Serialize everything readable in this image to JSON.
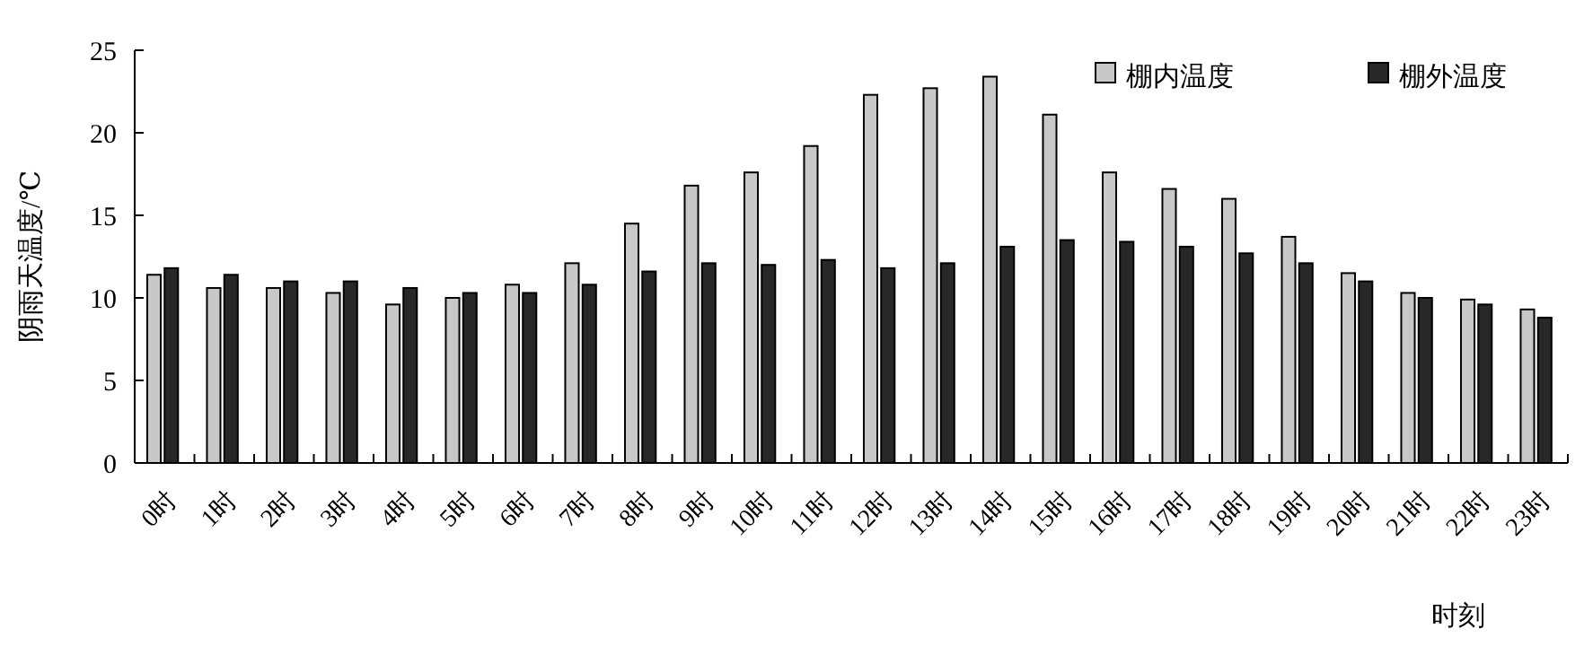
{
  "chart_data": {
    "type": "bar",
    "xlabel": "时刻",
    "ylabel": "阴雨天温度/℃",
    "categories": [
      "0时",
      "1时",
      "2时",
      "3时",
      "4时",
      "5时",
      "6时",
      "7时",
      "8时",
      "9时",
      "10时",
      "11时",
      "12时",
      "13时",
      "14时",
      "15时",
      "16时",
      "17时",
      "18时",
      "19时",
      "20时",
      "21时",
      "22时",
      "23时"
    ],
    "series": [
      {
        "name": "棚内温度",
        "color": "#c8c8c8",
        "values": [
          11.4,
          10.6,
          10.6,
          10.3,
          9.6,
          10.0,
          10.8,
          12.1,
          14.5,
          16.8,
          17.6,
          19.2,
          22.3,
          22.7,
          23.4,
          21.1,
          17.6,
          16.6,
          16.0,
          13.7,
          11.5,
          10.3,
          9.9,
          9.3
        ]
      },
      {
        "name": "棚外温度",
        "color": "#282828",
        "values": [
          11.8,
          11.4,
          11.0,
          11.0,
          10.6,
          10.3,
          10.3,
          10.8,
          11.6,
          12.1,
          12.0,
          12.3,
          11.8,
          12.1,
          13.1,
          13.5,
          13.4,
          13.1,
          12.7,
          12.1,
          11.0,
          10.0,
          9.6,
          8.8
        ]
      }
    ],
    "ylim": [
      0,
      25
    ],
    "yticks": [
      0,
      5,
      10,
      15,
      20,
      25
    ],
    "grid": false,
    "legend": "top right"
  }
}
